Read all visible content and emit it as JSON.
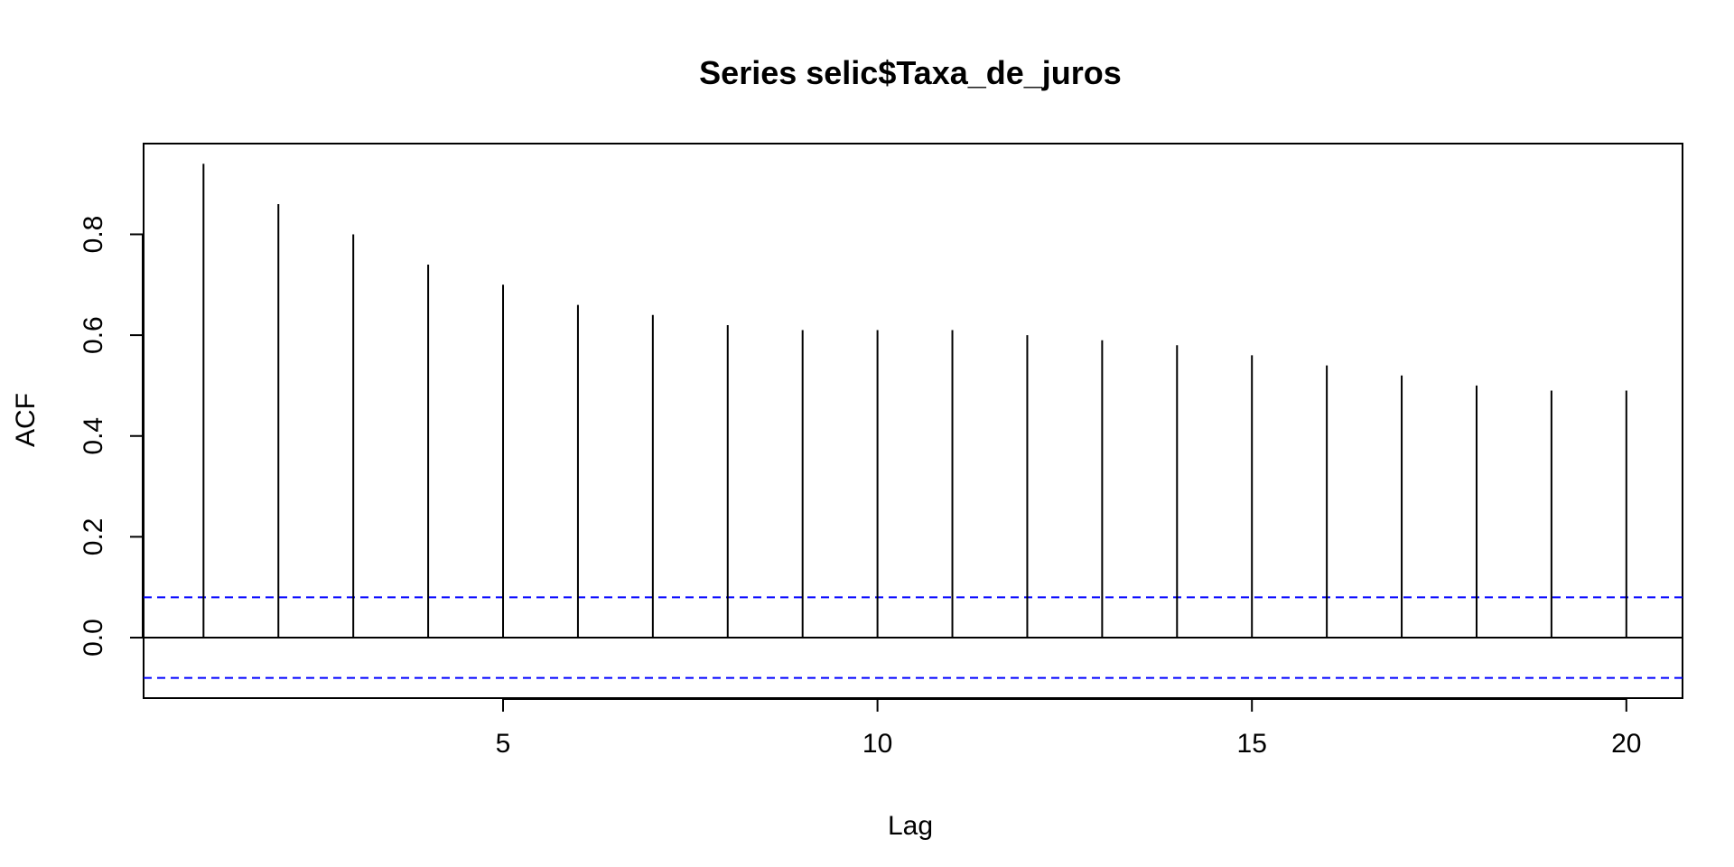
{
  "chart_data": {
    "type": "bar",
    "title": "Series selic$Taxa_de_juros",
    "xlabel": "Lag",
    "ylabel": "ACF",
    "x": [
      1,
      2,
      3,
      4,
      5,
      6,
      7,
      8,
      9,
      10,
      11,
      12,
      13,
      14,
      15,
      16,
      17,
      18,
      19,
      20
    ],
    "values": [
      0.94,
      0.86,
      0.8,
      0.74,
      0.7,
      0.66,
      0.64,
      0.62,
      0.61,
      0.61,
      0.61,
      0.6,
      0.59,
      0.58,
      0.56,
      0.54,
      0.52,
      0.5,
      0.49,
      0.49
    ],
    "xlim": [
      0.2,
      20.75
    ],
    "ylim": [
      -0.12,
      0.98
    ],
    "xticks": [
      5,
      10,
      15,
      20
    ],
    "xtick_labels": [
      "5",
      "10",
      "15",
      "20"
    ],
    "yticks": [
      0.0,
      0.2,
      0.4,
      0.6,
      0.8
    ],
    "ytick_labels": [
      "0.0",
      "0.2",
      "0.4",
      "0.6",
      "0.8"
    ],
    "confidence_bound": 0.08,
    "zero_line": true,
    "grid": false,
    "colors": {
      "bars": "#000000",
      "confidence_lines": "#0000ff",
      "axes": "#000000"
    }
  }
}
